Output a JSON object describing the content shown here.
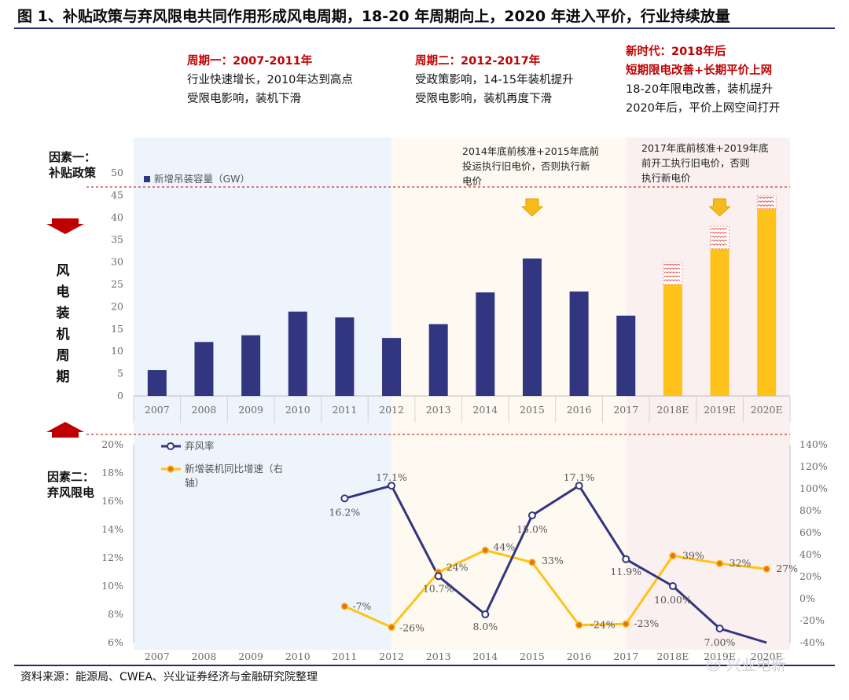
{
  "figure": {
    "title": "图 1、补贴政策与弃风限电共同作用形成风电周期，18-20 年周期向上，2020 年进入平价，行业持续放量",
    "source": "资料来源：能源局、CWEA、兴业证券经济与金融研究院整理",
    "watermark": "兴业电新"
  },
  "periods": [
    {
      "heading": "周期一：2007-2011年",
      "lines": [
        "行业快速增长，2010年达到高点",
        "受限电影响，装机下滑"
      ]
    },
    {
      "heading": "周期二：2012-2017年",
      "lines": [
        "受政策影响，14-15年装机提升",
        "受限电影响，装机再度下滑"
      ]
    },
    {
      "heading_lines": [
        "新时代：2018年后",
        "短期限电改善+长期平价上网"
      ],
      "lines": [
        "18-20年限电改善，装机提升",
        "2020年后，平价上网空间打开"
      ]
    }
  ],
  "factors": {
    "f1": [
      "因素一：",
      "补贴政策"
    ],
    "f2": [
      "因素二：",
      "弃风限电"
    ],
    "cycle_label": [
      "风",
      "电",
      "装",
      "机",
      "周",
      "期"
    ]
  },
  "notes": {
    "n1": [
      "2014年底前核准+2015年底前",
      "投运执行旧电价，否则执行新",
      "电价"
    ],
    "n2": [
      "2017年底前核准+2019年底",
      "前开工执行旧电价，否则",
      "执行新电价"
    ]
  },
  "colors": {
    "bar_actual": "#323580",
    "bar_forecast": "#ffc21a",
    "line_curtail": "#323580",
    "line_growth": "#ffc21a",
    "accent_red": "#c00000",
    "bg_period1": "#eef4fb",
    "bg_period2": "#fefaf1",
    "bg_period3": "#fbf0f0",
    "arrow_yellow": "#f6bb1a"
  },
  "chart_data": [
    {
      "type": "bar",
      "categories": [
        "2007",
        "2008",
        "2009",
        "2010",
        "2011",
        "2012",
        "2013",
        "2014",
        "2015",
        "2016",
        "2017",
        "2018E",
        "2019E",
        "2020E"
      ],
      "series": [
        {
          "name": "新增吊装容量（GW）",
          "values": [
            5.8,
            12.1,
            13.6,
            18.9,
            17.6,
            13.0,
            16.1,
            23.2,
            30.8,
            23.4,
            18.0,
            25.0,
            33.0,
            42.0
          ]
        }
      ],
      "forecast_categories": [
        "2018E",
        "2019E",
        "2020E"
      ],
      "forecast_upside_top": [
        30.0,
        38.0,
        45.0
      ],
      "ylim": [
        0,
        50
      ],
      "yticks": [
        0,
        5,
        10,
        15,
        20,
        25,
        30,
        35,
        40,
        45,
        50
      ]
    },
    {
      "type": "line",
      "categories": [
        "2007",
        "2008",
        "2009",
        "2010",
        "2011",
        "2012",
        "2013",
        "2014",
        "2015",
        "2016",
        "2017",
        "2018E",
        "2019E",
        "2020E"
      ],
      "series": [
        {
          "name": "弃风率",
          "axis": "left",
          "values": [
            null,
            null,
            null,
            null,
            16.2,
            17.1,
            10.7,
            8.0,
            15.0,
            17.1,
            11.9,
            10.0,
            7.0,
            5.8
          ],
          "labels": [
            null,
            null,
            null,
            null,
            "16.2%",
            "17.1%",
            "10.7%",
            "8.0%",
            "15.0%",
            "17.1%",
            "11.9%",
            "10.00%",
            "7.00%",
            null
          ]
        },
        {
          "name": "新增装机同比增速（右轴）",
          "axis": "right",
          "values": [
            null,
            null,
            null,
            null,
            -7,
            -26,
            24,
            44,
            33,
            -24,
            -23,
            39,
            32,
            27
          ],
          "labels": [
            null,
            null,
            null,
            null,
            "-7%",
            "-26%",
            "24%",
            "44%",
            "33%",
            "-24%",
            "-23%",
            "39%",
            "32%",
            "27%"
          ]
        }
      ],
      "ylim_left": [
        6,
        20
      ],
      "yticks_left": [
        "6%",
        "8%",
        "10%",
        "12%",
        "14%",
        "16%",
        "18%",
        "20%"
      ],
      "ylim_right": [
        -40,
        140
      ],
      "yticks_right": [
        "-40%",
        "-20%",
        "0%",
        "20%",
        "40%",
        "60%",
        "80%",
        "100%",
        "120%",
        "140%"
      ]
    }
  ]
}
